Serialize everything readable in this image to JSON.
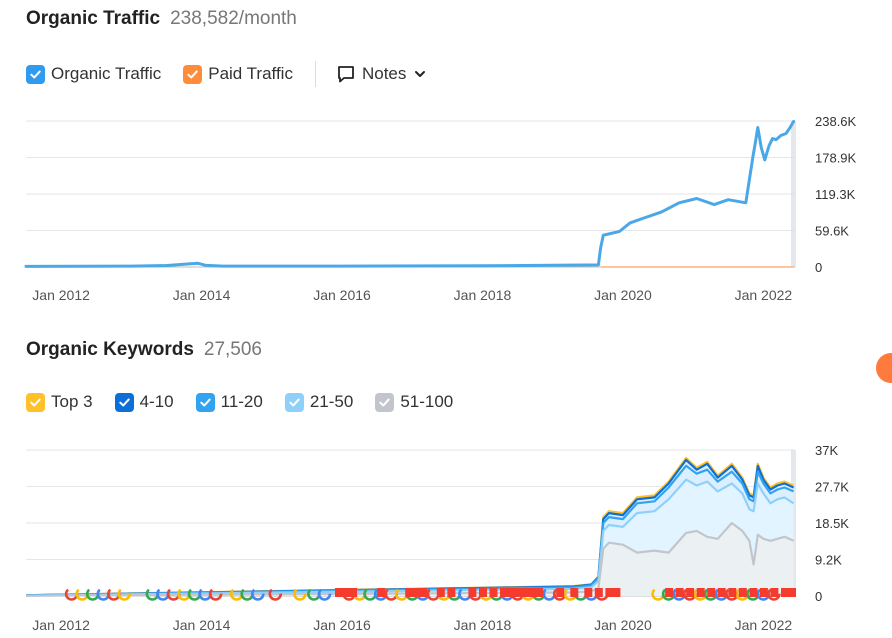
{
  "traffic": {
    "title": "Organic Traffic",
    "value": "238,582/month",
    "legend": [
      {
        "label": "Organic Traffic",
        "color": "#2e9bf0",
        "checked": true
      },
      {
        "label": "Paid Traffic",
        "color": "#ff8c3a",
        "checked": true
      }
    ],
    "notes_label": "Notes"
  },
  "keywords": {
    "title": "Organic Keywords",
    "value": "27,506",
    "legend": [
      {
        "label": "Top 3",
        "color": "#ffc02a",
        "checked": true
      },
      {
        "label": "4-10",
        "color": "#0c6fd8",
        "checked": true
      },
      {
        "label": "11-20",
        "color": "#30a4f0",
        "checked": true
      },
      {
        "label": "21-50",
        "color": "#8fd0fb",
        "checked": true
      },
      {
        "label": "51-100",
        "color": "#c2c5cc",
        "checked": true
      }
    ]
  },
  "chart_data": [
    {
      "type": "line",
      "x_ticks": [
        "Jan 2012",
        "Jan 2014",
        "Jan 2016",
        "Jan 2018",
        "Jan 2020",
        "Jan 2022"
      ],
      "y_ticks": [
        "238.6K",
        "178.9K",
        "119.3K",
        "59.6K",
        "0"
      ],
      "ylim": [
        0,
        238600
      ],
      "xlim": [
        2011.5,
        2022.45
      ],
      "series": [
        {
          "name": "Organic Traffic",
          "color": "#4aa8e8",
          "x": [
            2011.5,
            2013.0,
            2013.5,
            2013.95,
            2014.05,
            2014.3,
            2016.0,
            2018.0,
            2019.0,
            2019.65,
            2019.68,
            2019.72,
            2019.95,
            2020.1,
            2020.3,
            2020.55,
            2020.8,
            2021.05,
            2021.3,
            2021.5,
            2021.75,
            2021.85,
            2021.88,
            2021.92,
            2021.97,
            2022.02,
            2022.08,
            2022.13,
            2022.18,
            2022.25,
            2022.32,
            2022.38,
            2022.43
          ],
          "y": [
            1000,
            1500,
            2500,
            6000,
            3000,
            1500,
            1500,
            2000,
            3000,
            3500,
            30000,
            52000,
            58000,
            72000,
            80000,
            90000,
            105000,
            112000,
            102000,
            110000,
            105000,
            180000,
            200000,
            228000,
            195000,
            175000,
            198000,
            210000,
            208000,
            215000,
            218000,
            228000,
            238000
          ]
        },
        {
          "name": "Paid Traffic",
          "color": "#ffb07a",
          "x": [
            2019.7,
            2022.43
          ],
          "y": [
            0,
            0
          ]
        }
      ]
    },
    {
      "type": "area",
      "x_ticks": [
        "Jan 2012",
        "Jan 2014",
        "Jan 2016",
        "Jan 2018",
        "Jan 2020",
        "Jan 2022"
      ],
      "y_ticks": [
        "37K",
        "27.7K",
        "18.5K",
        "9.2K",
        "0"
      ],
      "ylim": [
        0,
        37000
      ],
      "xlim": [
        2011.5,
        2022.45
      ],
      "x": [
        2011.5,
        2019.3,
        2019.55,
        2019.65,
        2019.72,
        2019.8,
        2020.0,
        2020.2,
        2020.45,
        2020.65,
        2020.9,
        2021.05,
        2021.2,
        2021.35,
        2021.55,
        2021.7,
        2021.8,
        2021.86,
        2021.92,
        2022.0,
        2022.1,
        2022.2,
        2022.3,
        2022.43
      ],
      "series": [
        {
          "name": "Top 3",
          "color": "#ffc02a",
          "y": [
            200,
            2500,
            3000,
            5000,
            20000,
            21500,
            21000,
            25000,
            25500,
            29000,
            35000,
            32500,
            34000,
            30500,
            33500,
            30000,
            26000,
            25500,
            33500,
            30000,
            27500,
            28500,
            29000,
            28000
          ]
        },
        {
          "name": "4-10",
          "color": "#0c6fd8",
          "y": [
            200,
            2400,
            2900,
            4800,
            19500,
            21000,
            20500,
            24500,
            25000,
            28500,
            34500,
            32000,
            33500,
            30000,
            33000,
            29500,
            25500,
            25000,
            33000,
            29500,
            27000,
            28000,
            28500,
            27500
          ]
        },
        {
          "name": "11-20",
          "color": "#30a4f0",
          "y": [
            150,
            2200,
            2700,
            4500,
            18500,
            20000,
            19500,
            23500,
            24000,
            27500,
            33000,
            31000,
            32000,
            29000,
            31500,
            28500,
            24500,
            24000,
            31500,
            28500,
            26000,
            27000,
            27500,
            26500
          ]
        },
        {
          "name": "21-50",
          "color": "#8fd0fb",
          "y": [
            100,
            1800,
            2200,
            3800,
            16500,
            18000,
            17500,
            21000,
            21500,
            24500,
            29500,
            28000,
            29000,
            26500,
            28500,
            26000,
            22000,
            21500,
            28500,
            26000,
            23500,
            24500,
            25000,
            23500
          ]
        },
        {
          "name": "51-100",
          "color": "#c2c5cc",
          "y": [
            50,
            900,
            1200,
            2000,
            12000,
            13500,
            13000,
            11000,
            11500,
            11000,
            16000,
            16500,
            15000,
            14500,
            18500,
            16500,
            14000,
            8000,
            15500,
            14500,
            14000,
            14500,
            15000,
            14000
          ]
        }
      ],
      "google_marker_x": [
        2012.15,
        2012.3,
        2012.45,
        2012.6,
        2012.75,
        2012.9,
        2013.3,
        2013.45,
        2013.6,
        2013.75,
        2013.9,
        2014.05,
        2014.2,
        2014.5,
        2014.65,
        2014.8,
        2015.05,
        2015.4,
        2015.6,
        2015.75,
        2016.1,
        2016.25,
        2016.4,
        2016.55,
        2016.7,
        2016.85,
        2017.0,
        2017.15,
        2017.3,
        2017.45,
        2017.6,
        2017.75,
        2017.9,
        2018.05,
        2018.2,
        2018.35,
        2018.5,
        2018.65,
        2018.8,
        2018.95,
        2019.1,
        2019.25,
        2019.4,
        2019.55,
        2019.7,
        2020.5,
        2020.65,
        2020.8,
        2020.95,
        2021.1,
        2021.25,
        2021.4,
        2021.55,
        2021.7,
        2021.85,
        2022.0,
        2022.15
      ],
      "flag_marker_x": [
        2015.9,
        2016.0,
        2016.1,
        2016.5,
        2016.9,
        2017.0,
        2017.1,
        2017.35,
        2017.5,
        2017.8,
        2017.95,
        2018.1,
        2018.25,
        2018.35,
        2018.45,
        2018.55,
        2018.65,
        2018.75,
        2019.05,
        2019.25,
        2019.45,
        2019.6,
        2019.75,
        2019.85,
        2020.6,
        2020.75,
        2020.9,
        2021.05,
        2021.2,
        2021.35,
        2021.5,
        2021.65,
        2021.8,
        2021.95,
        2022.1,
        2022.25,
        2022.35
      ]
    }
  ]
}
